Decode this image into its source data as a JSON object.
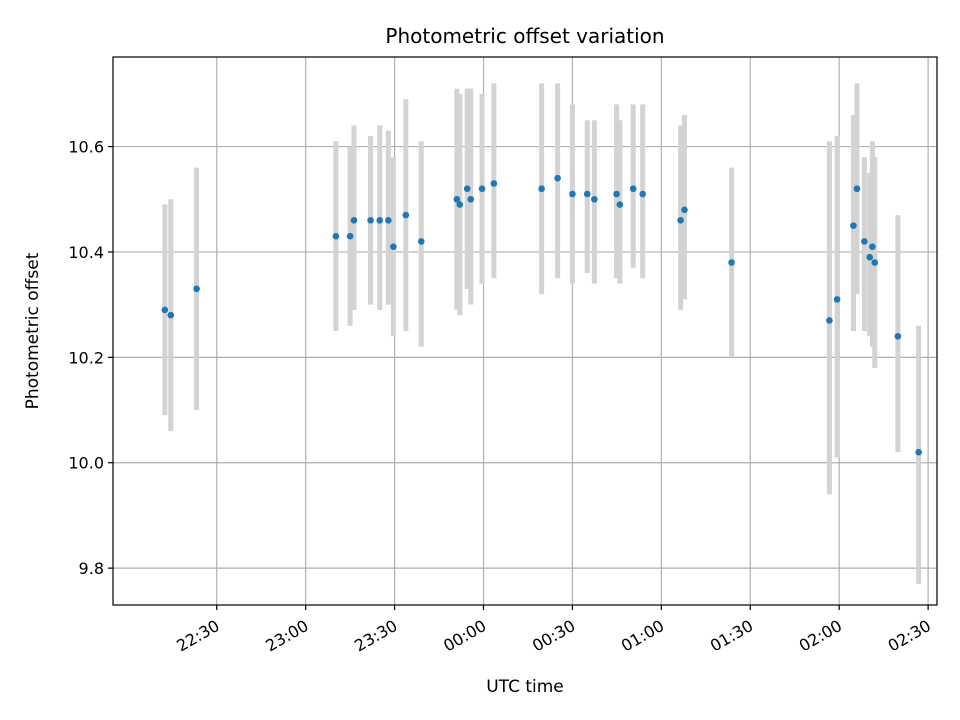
{
  "chart_data": {
    "type": "scatter",
    "title": "Photometric offset variation",
    "xlabel": "UTC time",
    "ylabel": "Photometric offset",
    "grid": true,
    "x_unit": "minutes_from_22:00",
    "xlim": [
      -5,
      273
    ],
    "ylim": [
      9.73,
      10.77
    ],
    "x_ticks": [
      {
        "value": 30,
        "label": "22:30"
      },
      {
        "value": 60,
        "label": "23:00"
      },
      {
        "value": 90,
        "label": "23:30"
      },
      {
        "value": 120,
        "label": "00:00"
      },
      {
        "value": 150,
        "label": "00:30"
      },
      {
        "value": 180,
        "label": "01:00"
      },
      {
        "value": 210,
        "label": "01:30"
      },
      {
        "value": 240,
        "label": "02:00"
      },
      {
        "value": 270,
        "label": "02:30"
      }
    ],
    "y_ticks": [
      {
        "value": 9.8,
        "label": "9.8"
      },
      {
        "value": 10.0,
        "label": "10.0"
      },
      {
        "value": 10.2,
        "label": "10.2"
      },
      {
        "value": 10.4,
        "label": "10.4"
      },
      {
        "value": 10.6,
        "label": "10.6"
      }
    ],
    "colors": {
      "points": "#1f77b4",
      "errorbars": "#d3d3d3",
      "grid": "#b0b0b0"
    },
    "points": [
      {
        "t": "22:12",
        "x": 12.5,
        "y": 10.29,
        "ylow": 10.09,
        "yhigh": 10.49
      },
      {
        "t": "22:14",
        "x": 14.5,
        "y": 10.28,
        "ylow": 10.06,
        "yhigh": 10.5
      },
      {
        "t": "22:23",
        "x": 23.2,
        "y": 10.33,
        "ylow": 10.1,
        "yhigh": 10.56
      },
      {
        "t": "23:10",
        "x": 70.2,
        "y": 10.43,
        "ylow": 10.25,
        "yhigh": 10.61
      },
      {
        "t": "23:15",
        "x": 75.0,
        "y": 10.43,
        "ylow": 10.26,
        "yhigh": 10.6
      },
      {
        "t": "23:16",
        "x": 76.3,
        "y": 10.46,
        "ylow": 10.29,
        "yhigh": 10.64
      },
      {
        "t": "23:22",
        "x": 81.9,
        "y": 10.46,
        "ylow": 10.3,
        "yhigh": 10.62
      },
      {
        "t": "23:25",
        "x": 85.0,
        "y": 10.46,
        "ylow": 10.29,
        "yhigh": 10.64
      },
      {
        "t": "23:28",
        "x": 87.9,
        "y": 10.46,
        "ylow": 10.3,
        "yhigh": 10.63
      },
      {
        "t": "23:30",
        "x": 89.6,
        "y": 10.41,
        "ylow": 10.24,
        "yhigh": 10.58
      },
      {
        "t": "23:34",
        "x": 93.8,
        "y": 10.47,
        "ylow": 10.25,
        "yhigh": 10.69
      },
      {
        "t": "23:39",
        "x": 99.0,
        "y": 10.42,
        "ylow": 10.22,
        "yhigh": 10.61
      },
      {
        "t": "23:51",
        "x": 111.0,
        "y": 10.5,
        "ylow": 10.29,
        "yhigh": 10.71
      },
      {
        "t": "23:52",
        "x": 112.0,
        "y": 10.49,
        "ylow": 10.28,
        "yhigh": 10.7
      },
      {
        "t": "23:54",
        "x": 114.5,
        "y": 10.52,
        "ylow": 10.33,
        "yhigh": 10.71
      },
      {
        "t": "23:55",
        "x": 115.7,
        "y": 10.5,
        "ylow": 10.3,
        "yhigh": 10.71
      },
      {
        "t": "00:00",
        "x": 119.5,
        "y": 10.52,
        "ylow": 10.34,
        "yhigh": 10.7
      },
      {
        "t": "00:04",
        "x": 123.5,
        "y": 10.53,
        "ylow": 10.35,
        "yhigh": 10.72
      },
      {
        "t": "00:20",
        "x": 139.6,
        "y": 10.52,
        "ylow": 10.32,
        "yhigh": 10.72
      },
      {
        "t": "00:25",
        "x": 145.0,
        "y": 10.54,
        "ylow": 10.35,
        "yhigh": 10.72
      },
      {
        "t": "00:30",
        "x": 150.0,
        "y": 10.51,
        "ylow": 10.34,
        "yhigh": 10.68
      },
      {
        "t": "00:35",
        "x": 155.0,
        "y": 10.51,
        "ylow": 10.36,
        "yhigh": 10.65
      },
      {
        "t": "00:37",
        "x": 157.4,
        "y": 10.5,
        "ylow": 10.34,
        "yhigh": 10.65
      },
      {
        "t": "00:45",
        "x": 164.9,
        "y": 10.51,
        "ylow": 10.35,
        "yhigh": 10.68
      },
      {
        "t": "00:46",
        "x": 166.0,
        "y": 10.49,
        "ylow": 10.34,
        "yhigh": 10.65
      },
      {
        "t": "00:50",
        "x": 170.5,
        "y": 10.52,
        "ylow": 10.37,
        "yhigh": 10.68
      },
      {
        "t": "00:54",
        "x": 173.7,
        "y": 10.51,
        "ylow": 10.35,
        "yhigh": 10.68
      },
      {
        "t": "01:07",
        "x": 186.5,
        "y": 10.46,
        "ylow": 10.29,
        "yhigh": 10.64
      },
      {
        "t": "01:08",
        "x": 187.8,
        "y": 10.48,
        "ylow": 10.31,
        "yhigh": 10.66
      },
      {
        "t": "01:24",
        "x": 203.7,
        "y": 10.38,
        "ylow": 10.2,
        "yhigh": 10.56
      },
      {
        "t": "01:57",
        "x": 236.7,
        "y": 10.27,
        "ylow": 9.94,
        "yhigh": 10.61
      },
      {
        "t": "01:59",
        "x": 239.3,
        "y": 10.31,
        "ylow": 10.01,
        "yhigh": 10.62
      },
      {
        "t": "02:05",
        "x": 244.8,
        "y": 10.45,
        "ylow": 10.25,
        "yhigh": 10.66
      },
      {
        "t": "02:06",
        "x": 246.0,
        "y": 10.52,
        "ylow": 10.32,
        "yhigh": 10.72
      },
      {
        "t": "02:08",
        "x": 248.5,
        "y": 10.42,
        "ylow": 10.25,
        "yhigh": 10.58
      },
      {
        "t": "02:10",
        "x": 250.3,
        "y": 10.39,
        "ylow": 10.24,
        "yhigh": 10.55
      },
      {
        "t": "02:11",
        "x": 251.2,
        "y": 10.41,
        "ylow": 10.22,
        "yhigh": 10.61
      },
      {
        "t": "02:12",
        "x": 252.0,
        "y": 10.38,
        "ylow": 10.18,
        "yhigh": 10.58
      },
      {
        "t": "02:20",
        "x": 259.8,
        "y": 10.24,
        "ylow": 10.02,
        "yhigh": 10.47
      },
      {
        "t": "02:27",
        "x": 266.8,
        "y": 10.02,
        "ylow": 9.77,
        "yhigh": 10.26
      }
    ]
  }
}
